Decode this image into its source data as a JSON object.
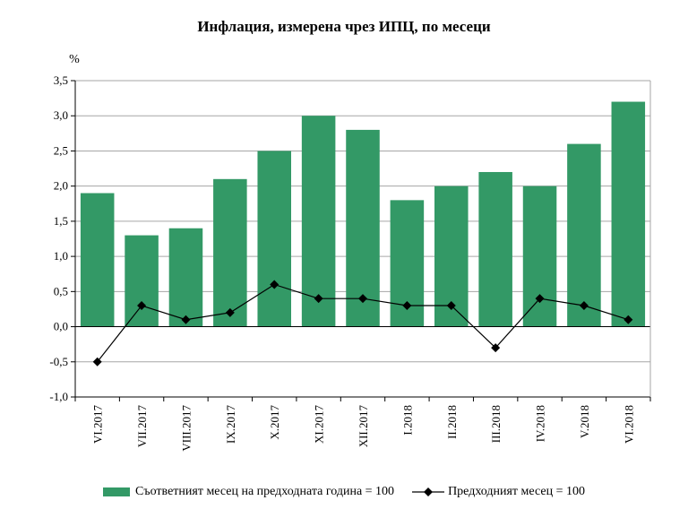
{
  "chart_data": {
    "type": "bar",
    "title": "Инфлация, измерена чрез ИПЦ, по месеци",
    "ylabel": "%",
    "xlabel": "",
    "ylim": [
      -1.0,
      3.5
    ],
    "yticks": [
      "-1,0",
      "-0,5",
      "0,0",
      "0,5",
      "1,0",
      "1,5",
      "2,0",
      "2,5",
      "3,0",
      "3,5"
    ],
    "categories": [
      "VI.2017",
      "VII.2017",
      "VIII.2017",
      "IX.2017",
      "X.2017",
      "XI.2017",
      "XII.2017",
      "I.2018",
      "II.2018",
      "III.2018",
      "IV.2018",
      "V.2018",
      "VI.2018"
    ],
    "grid": true,
    "legend_position": "bottom",
    "series": [
      {
        "name": "Съответният месец на предходната година = 100",
        "kind": "bar",
        "color": "#339966",
        "values": [
          1.9,
          1.3,
          1.4,
          2.1,
          2.5,
          3.0,
          2.8,
          1.8,
          2.0,
          2.2,
          2.0,
          2.6,
          3.2
        ]
      },
      {
        "name": "Предходният месец = 100",
        "kind": "line",
        "color": "#000000",
        "marker": "diamond",
        "values": [
          -0.5,
          0.3,
          0.1,
          0.2,
          0.6,
          0.4,
          0.4,
          0.3,
          0.3,
          -0.3,
          0.4,
          0.3,
          0.1
        ]
      }
    ]
  }
}
